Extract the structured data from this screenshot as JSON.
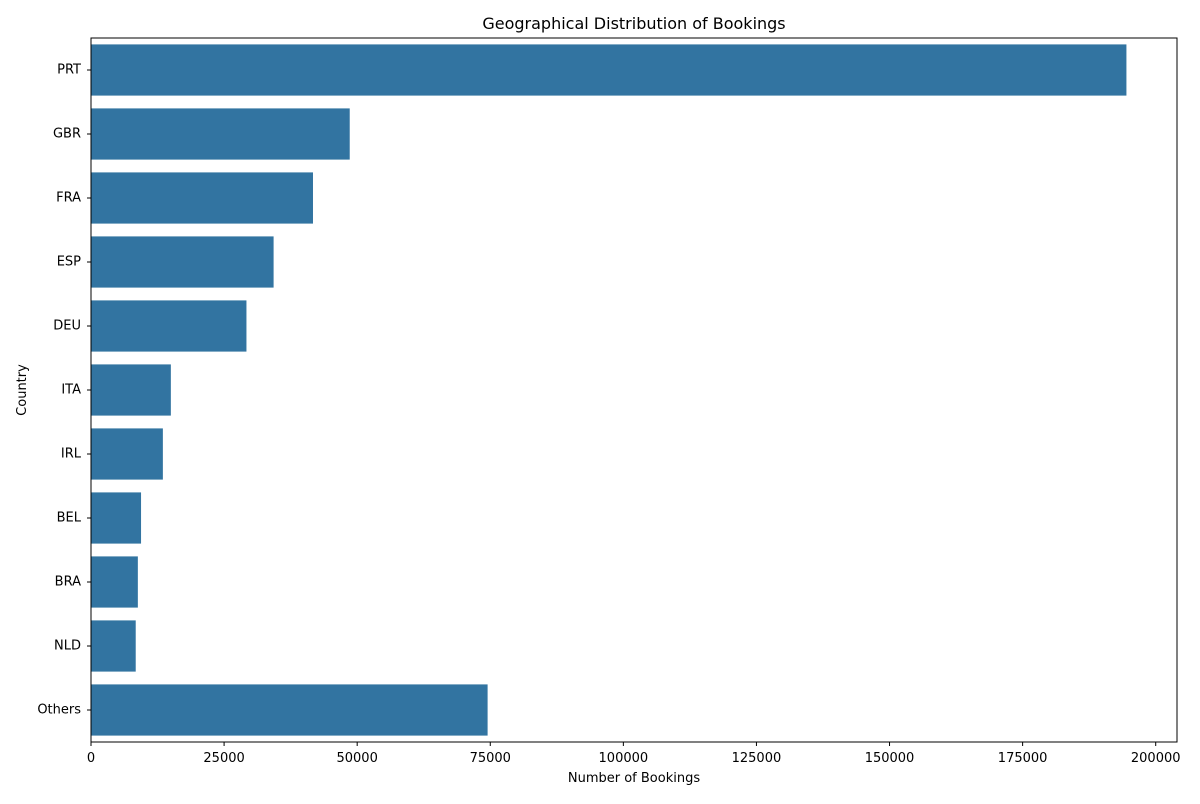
{
  "chart_data": {
    "type": "bar",
    "orientation": "horizontal",
    "title": "Geographical Distribution of Bookings",
    "xlabel": "Number of Bookings",
    "ylabel": "Country",
    "categories": [
      "PRT",
      "GBR",
      "FRA",
      "ESP",
      "DEU",
      "ITA",
      "IRL",
      "BEL",
      "BRA",
      "NLD",
      "Others"
    ],
    "values": [
      194500,
      48600,
      41700,
      34300,
      29200,
      15000,
      13500,
      9400,
      8800,
      8400,
      74500
    ],
    "xlim": [
      0,
      204000
    ],
    "xticks": [
      0,
      25000,
      50000,
      75000,
      100000,
      125000,
      150000,
      175000,
      200000
    ],
    "grid": false,
    "bar_color": "#3274a1"
  }
}
